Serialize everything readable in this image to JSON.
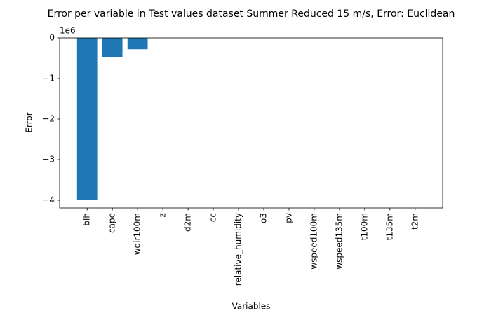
{
  "chart_data": {
    "type": "bar",
    "title": "Error per variable in Test values dataset Summer Reduced 15 m/s, Error: Euclidean",
    "x_label": "Variables",
    "y_label": "Error",
    "y_offset_label": "1e6",
    "categories": [
      "blh",
      "cape",
      "wdir100m",
      "z",
      "d2m",
      "cc",
      "relative_humidity",
      "o3",
      "pv",
      "wspeed100m",
      "wspeed135m",
      "t100m",
      "t135m",
      "t2m"
    ],
    "values": [
      -4.0,
      -0.48,
      -0.28,
      0,
      0,
      0,
      0,
      0,
      0,
      0,
      0,
      0,
      0,
      0
    ],
    "color": "#1f77b4",
    "ylim": [
      -4.19,
      0
    ],
    "yticks": [
      {
        "value": -4,
        "label": "−4"
      },
      {
        "value": -3,
        "label": "−3"
      },
      {
        "value": -2,
        "label": "−2"
      },
      {
        "value": -1,
        "label": "−1"
      },
      0
    ],
    "grid": false
  }
}
